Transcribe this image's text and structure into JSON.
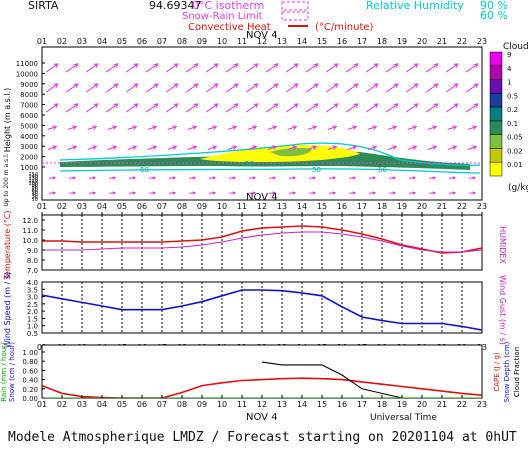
{
  "header": {
    "station": "SIRTA",
    "station_id": "94.69347",
    "legend_isotherm": "0°C isotherm",
    "legend_snow": "Snow-Rain Limit",
    "legend_conv": "Convective Heat",
    "legend_conv_unit": "(°C/minute)",
    "legend_rh_label": "Relative Humidity",
    "legend_rh_90": "90 %",
    "legend_rh_60": "60 %"
  },
  "hours": [
    "01",
    "02",
    "03",
    "04",
    "05",
    "06",
    "07",
    "08",
    "09",
    "10",
    "11",
    "12",
    "13",
    "14",
    "15",
    "16",
    "17",
    "18",
    "19",
    "20",
    "21",
    "22",
    "23"
  ],
  "date_label": "NOV  4",
  "footer": "Modele Atmospherique LMDZ / Forecast starting on 20201104 at 0hUT",
  "colors": {
    "wind": "#e040e0",
    "cloud_scale": [
      "#ffff00",
      "#c8c800",
      "#7fbf3f",
      "#2e8b57",
      "#008080",
      "#1e3c9a",
      "#6a0dad",
      "#b000b0",
      "#e800e8"
    ],
    "temperature": "#dd1111",
    "humidex": "#cc22cc",
    "wind_speed": "#1111cc",
    "rain": "#00aa00",
    "snow": "#1111cc",
    "cape": "#dd1111",
    "snow_depth": "#1111cc",
    "cloud_fraction": "#000000",
    "rh90": "#00cccc",
    "rh60": "#00cccc"
  },
  "chart_data": [
    {
      "type": "heatmap",
      "name": "cloud-panel",
      "ylabel": "Height (m a.s.l.)",
      "ylabel_low": "Up to 200 m a.s.l.",
      "yticks_upper": [
        1000,
        2000,
        3000,
        4000,
        5000,
        6000,
        7000,
        8000,
        9000,
        10000,
        11000
      ],
      "yticks_lower": [
        10,
        20,
        30,
        40,
        50,
        60,
        70,
        80,
        90,
        100,
        110,
        120,
        130,
        140,
        150
      ],
      "colorbar_title": "Clouds",
      "colorbar_unit": "(g/kg)",
      "colorbar_ticks": [
        "9",
        "4",
        "1",
        "0.5",
        "0.2",
        "0.1",
        "0.05",
        "0.02",
        "0.01"
      ],
      "contour_labels": [
        "50",
        "50",
        "50",
        "50"
      ],
      "wind_vectors": "barbs across all heights"
    },
    {
      "type": "line",
      "name": "temperature-panel",
      "ylabel": "Temperature (°C)",
      "ylabel_right": "HUMIDEX",
      "yticks": [
        "7.0",
        "8.0",
        "9.0",
        "10.0",
        "11.0",
        "12.0"
      ],
      "ylim": [
        7.0,
        12.5
      ],
      "x": [
        1,
        2,
        3,
        4,
        5,
        6,
        7,
        8,
        9,
        10,
        11,
        12,
        13,
        14,
        15,
        16,
        17,
        18,
        19,
        20,
        21,
        22,
        23
      ],
      "series": [
        {
          "name": "Temperature",
          "values": [
            9.9,
            9.9,
            9.8,
            9.8,
            9.8,
            9.8,
            9.8,
            9.9,
            10.0,
            10.3,
            10.9,
            11.2,
            11.3,
            11.4,
            11.3,
            11.0,
            10.6,
            10.1,
            9.5,
            9.1,
            8.7,
            8.8,
            9.2
          ]
        },
        {
          "name": "Humidex",
          "values": [
            9.0,
            9.0,
            9.0,
            9.1,
            9.2,
            9.2,
            9.2,
            9.3,
            9.5,
            9.8,
            10.2,
            10.5,
            10.7,
            10.8,
            10.8,
            10.6,
            10.3,
            9.9,
            9.4,
            9.0,
            8.8,
            8.8,
            9.0
          ]
        }
      ]
    },
    {
      "type": "line",
      "name": "wind-panel",
      "ylabel": "Wind Speed (m / s)",
      "ylabel_right": "Wind Gust (m / s)",
      "yticks": [
        "0.5",
        "1.0",
        "1.5",
        "2.0",
        "2.5",
        "3.0",
        "3.5",
        "4.0"
      ],
      "ylim": [
        0.5,
        4.0
      ],
      "x": [
        1,
        2,
        3,
        4,
        5,
        6,
        7,
        8,
        9,
        10,
        11,
        12,
        13,
        14,
        15,
        16,
        17,
        18,
        19,
        20,
        21,
        22,
        23
      ],
      "series": [
        {
          "name": "Wind Speed",
          "values": [
            3.1,
            2.85,
            2.6,
            2.35,
            2.1,
            2.1,
            2.1,
            2.35,
            2.65,
            3.05,
            3.45,
            3.45,
            3.4,
            3.25,
            3.05,
            2.3,
            1.6,
            1.35,
            1.15,
            1.15,
            1.15,
            0.95,
            0.7
          ]
        }
      ]
    },
    {
      "type": "line",
      "name": "precip-panel",
      "ylabel_left_green": "Rain (mm / hour)",
      "ylabel_left_blue": "Snow (cm / hour)",
      "ylabel_right_red": "CAPE (J / g)",
      "ylabel_right_blue": "Snow Depth (cm)",
      "ylabel_right_black": "Cloud Fraction",
      "yticks": [
        "0.00",
        "0.20",
        "0.40",
        "0.60",
        "0.80",
        "1.00"
      ],
      "ylim": [
        0,
        1.0
      ],
      "x": [
        1,
        2,
        3,
        4,
        5,
        6,
        7,
        8,
        9,
        10,
        11,
        12,
        13,
        14,
        15,
        16,
        17,
        18,
        19,
        20,
        21,
        22,
        23
      ],
      "series": [
        {
          "name": "CAPE",
          "values": [
            0.27,
            0.1,
            0.03,
            0.01,
            0.0,
            0.0,
            0.0,
            0.12,
            0.27,
            0.33,
            0.38,
            0.4,
            0.42,
            0.43,
            0.42,
            0.4,
            0.35,
            0.3,
            0.25,
            0.2,
            0.15,
            0.1,
            0.06
          ]
        },
        {
          "name": "Cloud Fraction",
          "values": [
            null,
            null,
            null,
            null,
            null,
            null,
            null,
            null,
            null,
            null,
            null,
            0.78,
            0.72,
            0.72,
            0.72,
            0.5,
            0.2,
            0.1,
            0.0,
            null,
            null,
            null,
            null
          ]
        },
        {
          "name": "Rain",
          "values": [
            0,
            0,
            0,
            0,
            0,
            0,
            0,
            0,
            0,
            0,
            0,
            0,
            0,
            0,
            0,
            0,
            0,
            0,
            0,
            0,
            0,
            0,
            0
          ]
        }
      ],
      "xlabel": "Universal Time"
    }
  ]
}
